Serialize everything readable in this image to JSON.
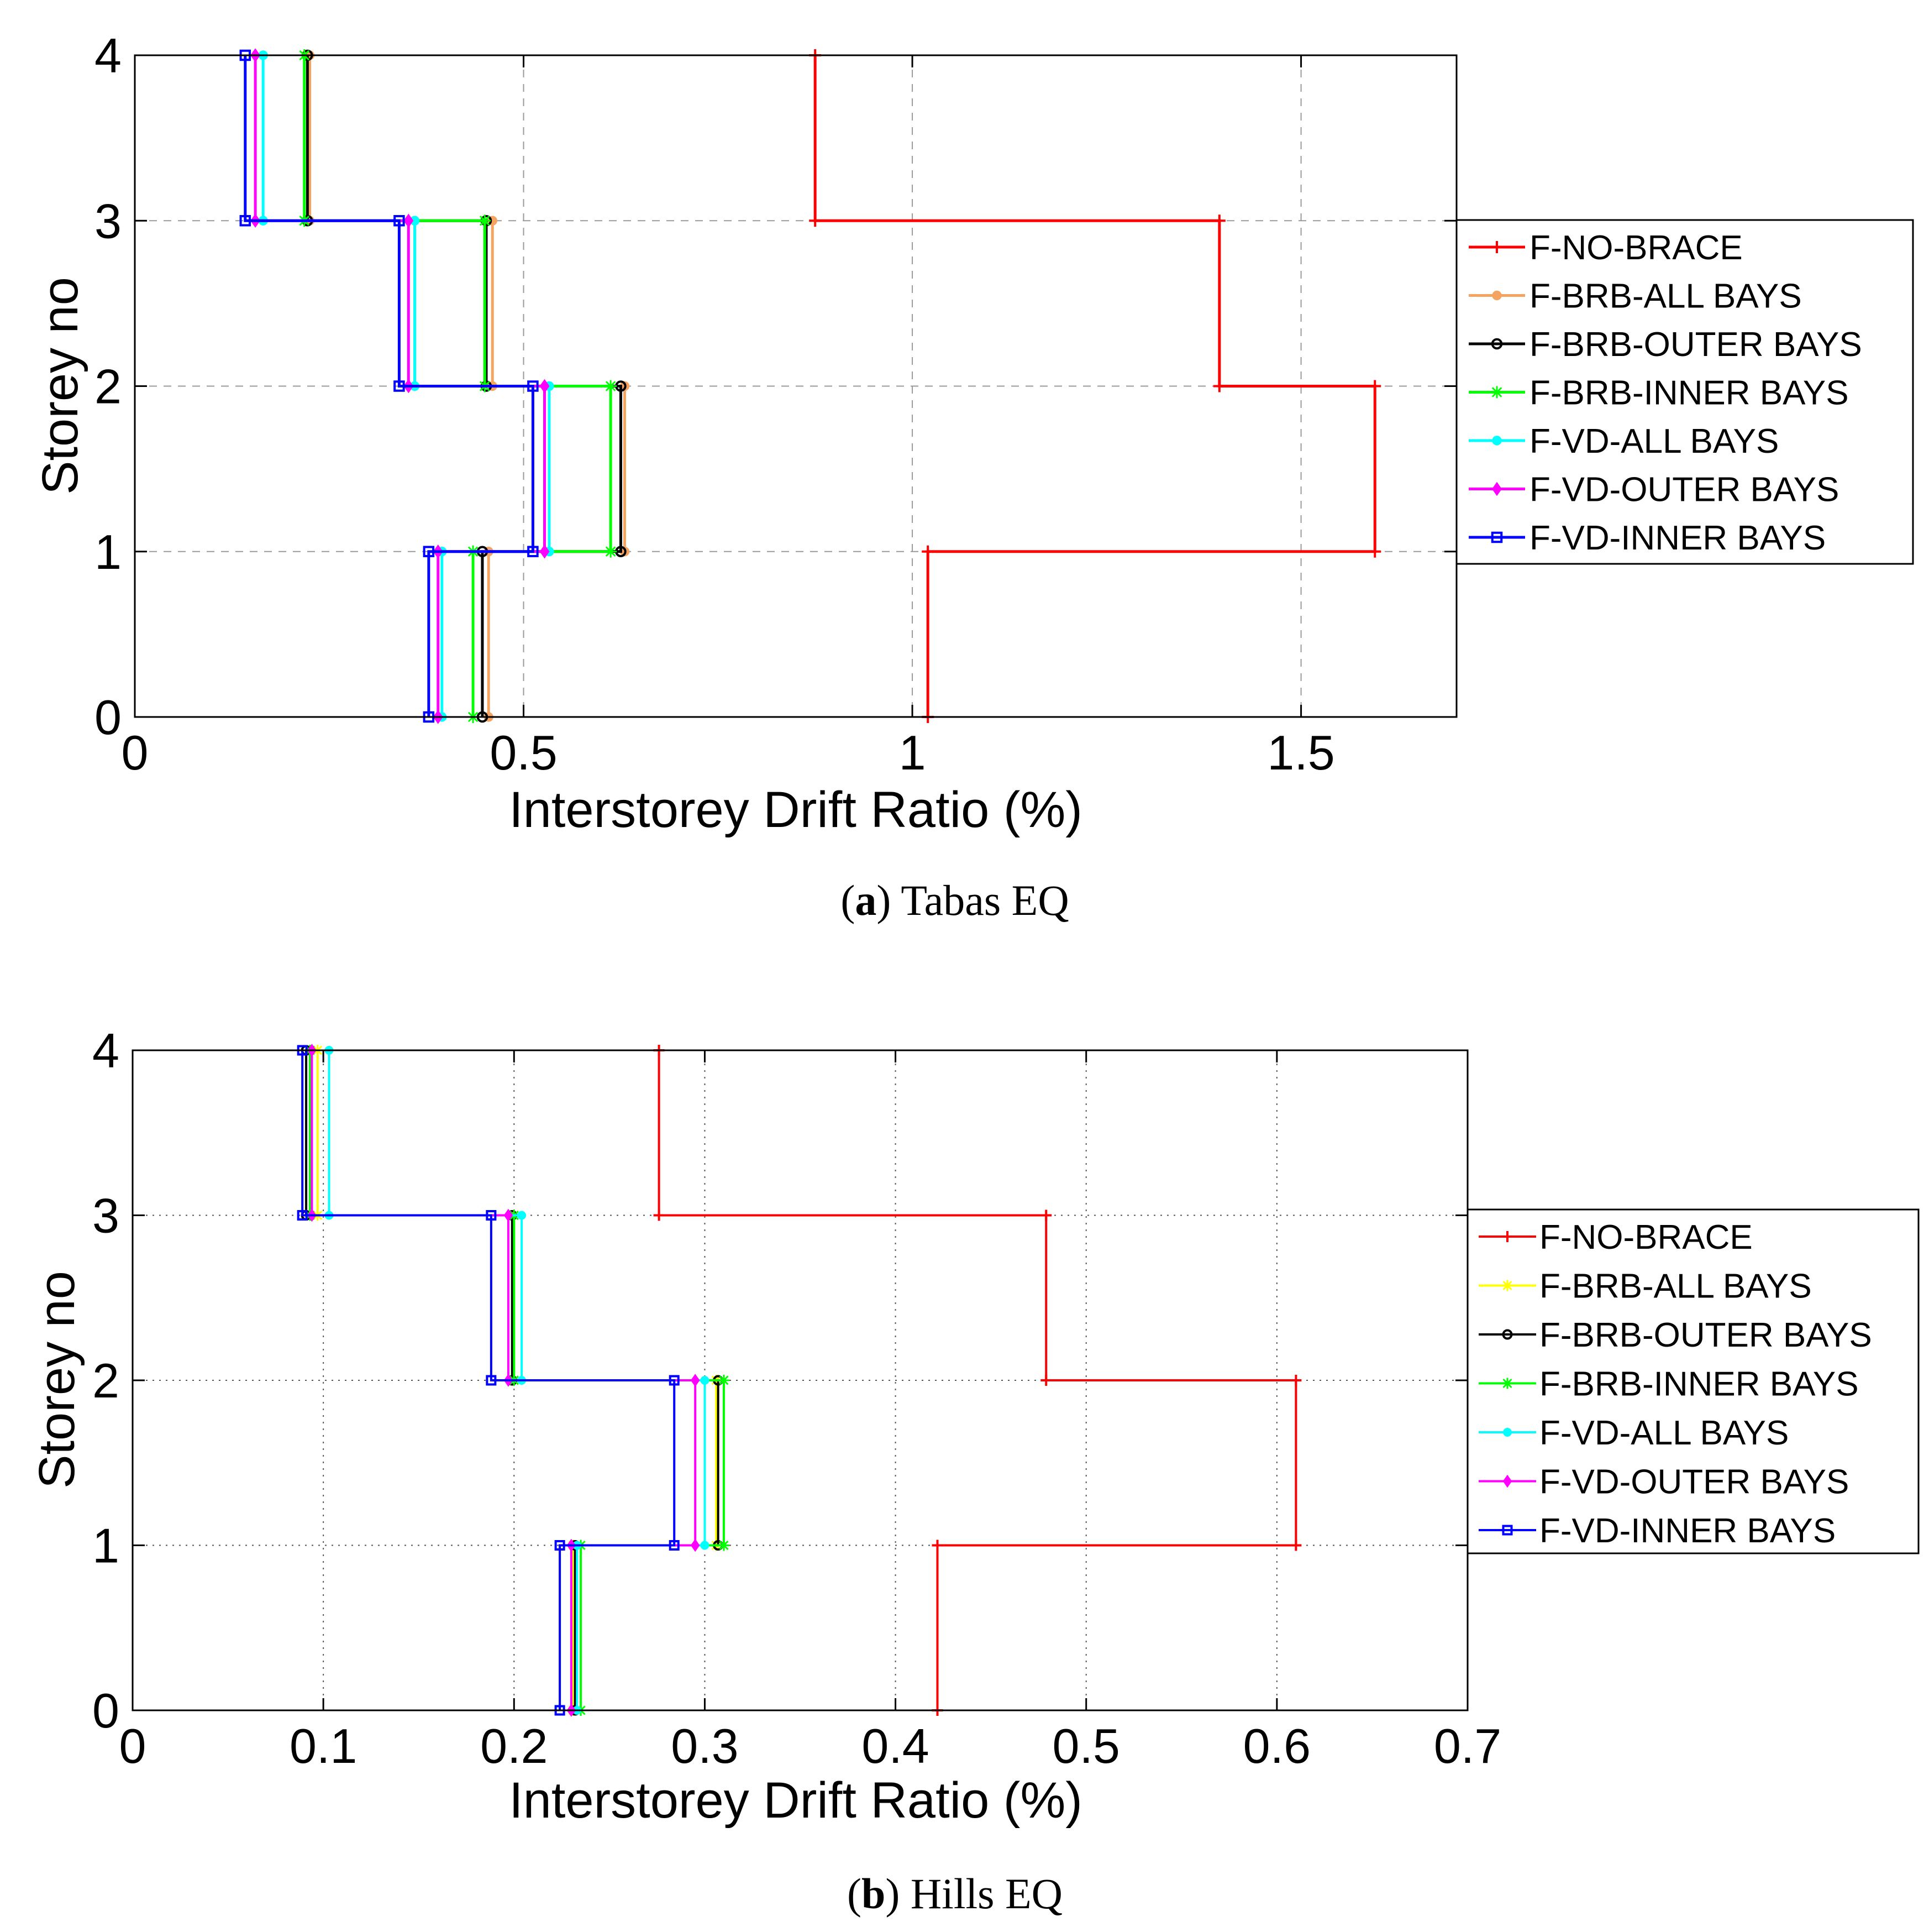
{
  "chart_data": [
    {
      "type": "line",
      "panel": "a",
      "caption_letter": "a",
      "caption_text": "Tabas EQ",
      "xlabel": "Interstorey Drift Ratio (%)",
      "ylabel": "Storey no",
      "xlim": [
        0,
        1.7
      ],
      "ylim": [
        0,
        4
      ],
      "xticks": [
        0,
        0.5,
        1,
        1.5
      ],
      "xtick_labels": [
        "0",
        "0.5",
        "1",
        "1.5"
      ],
      "yticks": [
        0,
        1,
        2,
        3,
        4
      ],
      "ytick_labels": [
        "0",
        "1",
        "2",
        "3",
        "4"
      ],
      "grid": "dashed",
      "legend_position": "right",
      "series": [
        {
          "name": "F-NO-BRACE",
          "color": "#ff0000",
          "marker": "plus",
          "values": [
            1.02,
            1.595,
            1.395,
            0.875
          ]
        },
        {
          "name": "F-BRB-ALL BAYS",
          "color": "#f4a460",
          "marker": "dot",
          "values": [
            0.455,
            0.63,
            0.46,
            0.225
          ]
        },
        {
          "name": "F-BRB-OUTER BAYS",
          "color": "#000000",
          "marker": "circle",
          "values": [
            0.447,
            0.625,
            0.452,
            0.222
          ]
        },
        {
          "name": "F-BRB-INNER BAYS",
          "color": "#00ff00",
          "marker": "star",
          "values": [
            0.435,
            0.612,
            0.45,
            0.218
          ]
        },
        {
          "name": "F-VD-ALL BAYS",
          "color": "#00ffff",
          "marker": "dot",
          "values": [
            0.395,
            0.533,
            0.36,
            0.165
          ]
        },
        {
          "name": "F-VD-OUTER BAYS",
          "color": "#ff00ff",
          "marker": "diamond",
          "values": [
            0.39,
            0.527,
            0.352,
            0.155
          ]
        },
        {
          "name": "F-VD-INNER BAYS",
          "color": "#0000ff",
          "marker": "square",
          "values": [
            0.378,
            0.512,
            0.34,
            0.142
          ]
        }
      ]
    },
    {
      "type": "line",
      "panel": "b",
      "caption_letter": "b",
      "caption_text": "Hills EQ",
      "xlabel": "Interstorey Drift Ratio (%)",
      "ylabel": "Storey no",
      "xlim": [
        0,
        0.7
      ],
      "ylim": [
        0,
        4
      ],
      "xticks": [
        0,
        0.1,
        0.2,
        0.3,
        0.4,
        0.5,
        0.6,
        0.7
      ],
      "xtick_labels": [
        "0",
        "0.1",
        "0.2",
        "0.3",
        "0.4",
        "0.5",
        "0.6",
        "0.7"
      ],
      "yticks": [
        0,
        1,
        2,
        3,
        4
      ],
      "ytick_labels": [
        "0",
        "1",
        "2",
        "3",
        "4"
      ],
      "grid": "dotted",
      "legend_position": "right",
      "series": [
        {
          "name": "F-NO-BRACE",
          "color": "#ff0000",
          "marker": "plus",
          "values": [
            0.422,
            0.61,
            0.479,
            0.276
          ]
        },
        {
          "name": "F-BRB-ALL BAYS",
          "color": "#ffff00",
          "marker": "star",
          "values": [
            0.231,
            0.306,
            0.2,
            0.097
          ]
        },
        {
          "name": "F-BRB-OUTER BAYS",
          "color": "#000000",
          "marker": "circle",
          "values": [
            0.232,
            0.307,
            0.199,
            0.091
          ]
        },
        {
          "name": "F-BRB-INNER BAYS",
          "color": "#00ff00",
          "marker": "star",
          "values": [
            0.235,
            0.31,
            0.2,
            0.093
          ]
        },
        {
          "name": "F-VD-ALL BAYS",
          "color": "#00ffff",
          "marker": "dot",
          "values": [
            0.233,
            0.3,
            0.204,
            0.103
          ]
        },
        {
          "name": "F-VD-OUTER BAYS",
          "color": "#ff00ff",
          "marker": "diamond",
          "values": [
            0.23,
            0.295,
            0.197,
            0.094
          ]
        },
        {
          "name": "F-VD-INNER BAYS",
          "color": "#0000ff",
          "marker": "square",
          "values": [
            0.224,
            0.284,
            0.188,
            0.089
          ]
        }
      ]
    }
  ]
}
